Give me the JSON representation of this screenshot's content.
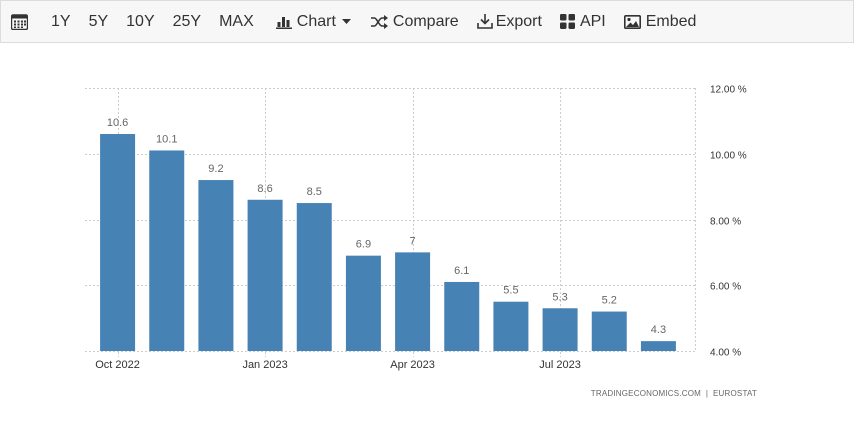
{
  "toolbar": {
    "ranges": [
      "1Y",
      "5Y",
      "10Y",
      "25Y",
      "MAX"
    ],
    "chart_label": "Chart",
    "compare_label": "Compare",
    "export_label": "Export",
    "api_label": "API",
    "embed_label": "Embed"
  },
  "source": {
    "site": "TRADINGECONOMICS.COM",
    "provider": "EUROSTAT"
  },
  "colors": {
    "bar": "#4682b4",
    "grid": "#cccccc",
    "toolbar_bg": "#f7f7f7"
  },
  "chart_data": {
    "type": "bar",
    "categories": [
      "Oct 2022",
      "Nov 2022",
      "Dec 2022",
      "Jan 2023",
      "Feb 2023",
      "Mar 2023",
      "Apr 2023",
      "May 2023",
      "Jun 2023",
      "Jul 2023",
      "Aug 2023",
      "Sep 2023"
    ],
    "values": [
      10.6,
      10.1,
      9.2,
      8.6,
      8.5,
      6.9,
      7,
      6.1,
      5.5,
      5.3,
      5.2,
      4.3
    ],
    "value_labels": [
      "10.6",
      "10.1",
      "9.2",
      "8.6",
      "8.5",
      "6.9",
      "7",
      "6.1",
      "5.5",
      "5.3",
      "5.2",
      "4.3"
    ],
    "x_tick_labels": [
      {
        "index": 0,
        "label": "Oct 2022"
      },
      {
        "index": 3,
        "label": "Jan 2023"
      },
      {
        "index": 6,
        "label": "Apr 2023"
      },
      {
        "index": 9,
        "label": "Jul 2023"
      }
    ],
    "y_ticks": [
      4,
      6,
      8,
      10,
      12
    ],
    "y_tick_labels": [
      "4.00 %",
      "6.00 %",
      "8.00 %",
      "10.00 %",
      "12.00 %"
    ],
    "ylim": [
      4,
      12
    ],
    "grid": true,
    "y_axis_side": "right",
    "title": "",
    "xlabel": "",
    "ylabel": ""
  }
}
